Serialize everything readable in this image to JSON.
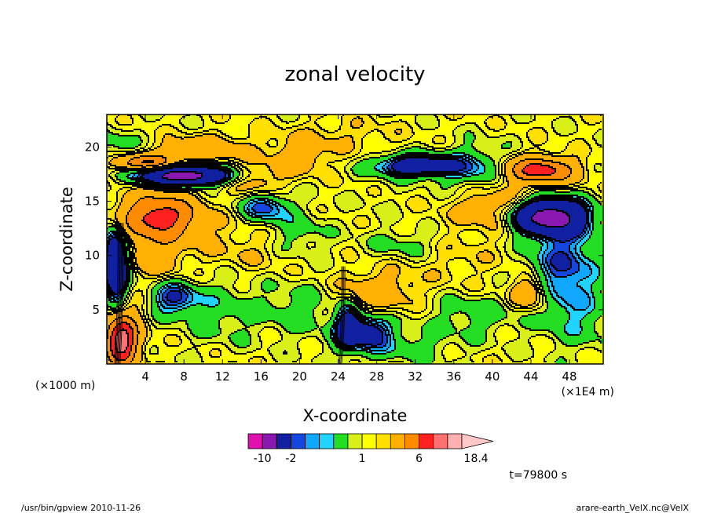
{
  "chart_data": {
    "type": "heatmap",
    "title": "zonal velocity",
    "xlabel": "X-coordinate",
    "ylabel": "Z-coordinate",
    "x_unit": "(×1E4 m)",
    "y_unit": "(×1000 m)",
    "xlim": [
      0,
      51.5
    ],
    "ylim": [
      0,
      23
    ],
    "x_ticks": [
      4,
      8,
      12,
      16,
      20,
      24,
      28,
      32,
      36,
      40,
      44,
      48
    ],
    "y_ticks": [
      5,
      10,
      15,
      20
    ],
    "colorbar": {
      "levels": [
        -16,
        -10,
        -7,
        -2,
        -1.5,
        -1,
        -0.5,
        0.5,
        1,
        1.5,
        2,
        4,
        6,
        8,
        10,
        14,
        18.4
      ],
      "colors": [
        "#e010b0",
        "#8a18b0",
        "#1020a0",
        "#1446e0",
        "#10a8ff",
        "#20d4ff",
        "#22dd22",
        "#d8f018",
        "#ffff00",
        "#ffe000",
        "#ffb000",
        "#ff8c00",
        "#ff2020",
        "#ff7070",
        "#ffb0b0",
        "#ffc8c8"
      ],
      "tick_labels": [
        "-10",
        "-2",
        "1",
        "6",
        "18.4"
      ],
      "tick_values": [
        -10,
        -2,
        1,
        6,
        18.4
      ],
      "extend": "max"
    },
    "background_value": 1.2,
    "features": [
      {
        "x": 2.0,
        "z": 3.0,
        "sx": 2.0,
        "sz": 3.5,
        "v": 3.0
      },
      {
        "x": 1.0,
        "z": 9.0,
        "sx": 1.2,
        "sz": 3.0,
        "v": -7.0
      },
      {
        "x": 1.5,
        "z": 2.0,
        "sx": 1.5,
        "sz": 2.0,
        "v": 8.0
      },
      {
        "x": 5.5,
        "z": 13.5,
        "sx": 4.0,
        "sz": 2.0,
        "v": 7.0
      },
      {
        "x": 8.0,
        "z": 17.3,
        "sx": 4.0,
        "sz": 0.8,
        "v": -10.0
      },
      {
        "x": 4.0,
        "z": 18.5,
        "sx": 3.0,
        "sz": 0.7,
        "v": 6.0
      },
      {
        "x": 9.5,
        "z": 19.5,
        "sx": 5.0,
        "sz": 1.0,
        "v": 3.0
      },
      {
        "x": 11.0,
        "z": 20.5,
        "sx": 4.0,
        "sz": 1.0,
        "v": 2.0
      },
      {
        "x": 7.0,
        "z": 6.0,
        "sx": 2.5,
        "sz": 1.5,
        "v": -2.0
      },
      {
        "x": 5.0,
        "z": 10.0,
        "sx": 3.0,
        "sz": 2.0,
        "v": 3.0
      },
      {
        "x": 16.0,
        "z": 16.5,
        "sx": 2.5,
        "sz": 1.5,
        "v": 3.0
      },
      {
        "x": 16.5,
        "z": 14.5,
        "sx": 2.5,
        "sz": 1.5,
        "v": -2.0
      },
      {
        "x": 20.0,
        "z": 5.0,
        "sx": 4.0,
        "sz": 2.5,
        "v": 0.0
      },
      {
        "x": 20.0,
        "z": 19.0,
        "sx": 3.0,
        "sz": 1.5,
        "v": 3.0
      },
      {
        "x": 24.0,
        "z": 21.0,
        "sx": 6.0,
        "sz": 1.5,
        "v": 2.0
      },
      {
        "x": 32.0,
        "z": 18.2,
        "sx": 4.0,
        "sz": 1.0,
        "v": -4.0
      },
      {
        "x": 28.0,
        "z": 15.0,
        "sx": 3.0,
        "sz": 1.5,
        "v": 1.0
      },
      {
        "x": 28.0,
        "z": 6.5,
        "sx": 4.0,
        "sz": 2.0,
        "v": 3.0
      },
      {
        "x": 27.0,
        "z": 3.0,
        "sx": 2.5,
        "sz": 1.5,
        "v": -3.0
      },
      {
        "x": 30.0,
        "z": 1.5,
        "sx": 6.0,
        "sz": 1.5,
        "v": 0.0
      },
      {
        "x": 38.0,
        "z": 18.0,
        "sx": 3.5,
        "sz": 2.0,
        "v": -1.0
      },
      {
        "x": 40.0,
        "z": 14.5,
        "sx": 4.0,
        "sz": 2.0,
        "v": 3.0
      },
      {
        "x": 45.0,
        "z": 17.8,
        "sx": 3.5,
        "sz": 1.2,
        "v": 7.0
      },
      {
        "x": 46.0,
        "z": 13.5,
        "sx": 3.5,
        "sz": 1.5,
        "v": -9.0
      },
      {
        "x": 47.5,
        "z": 9.0,
        "sx": 3.5,
        "sz": 4.0,
        "v": -2.0
      },
      {
        "x": 49.0,
        "z": 4.0,
        "sx": 3.5,
        "sz": 3.0,
        "v": 0.0
      },
      {
        "x": 44.0,
        "z": 6.5,
        "sx": 2.0,
        "sz": 1.5,
        "v": 4.0
      },
      {
        "x": 36.0,
        "z": 10.0,
        "sx": 6.0,
        "sz": 3.0,
        "v": 1.8
      },
      {
        "x": 14.0,
        "z": 10.5,
        "sx": 5.0,
        "sz": 2.5,
        "v": 2.0
      },
      {
        "x": 12.0,
        "z": 5.0,
        "sx": 4.0,
        "sz": 3.0,
        "v": 0.0
      },
      {
        "x": 38.0,
        "z": 4.5,
        "sx": 5.0,
        "sz": 2.0,
        "v": 0.0
      },
      {
        "x": 31.0,
        "z": 11.0,
        "sx": 4.0,
        "sz": 1.5,
        "v": 0.0
      },
      {
        "x": 20.0,
        "z": 12.0,
        "sx": 3.0,
        "sz": 2.0,
        "v": 0.0
      },
      {
        "x": 25.0,
        "z": 3.5,
        "sx": 1.2,
        "sz": 2.0,
        "v": -2.5
      },
      {
        "x": 1.0,
        "z": 20.0,
        "sx": 2.5,
        "sz": 1.5,
        "v": 0.0
      }
    ],
    "steep_lines": [
      {
        "x": 1.4,
        "z_top": 13.0,
        "count": 6
      },
      {
        "x": 24.5,
        "z_top": 9.0,
        "count": 4
      }
    ],
    "time_label": "t=79800 s"
  },
  "footer": {
    "left": "/usr/bin/gpview   2010-11-26",
    "right": "arare-earth_VelX.nc@VelX"
  }
}
